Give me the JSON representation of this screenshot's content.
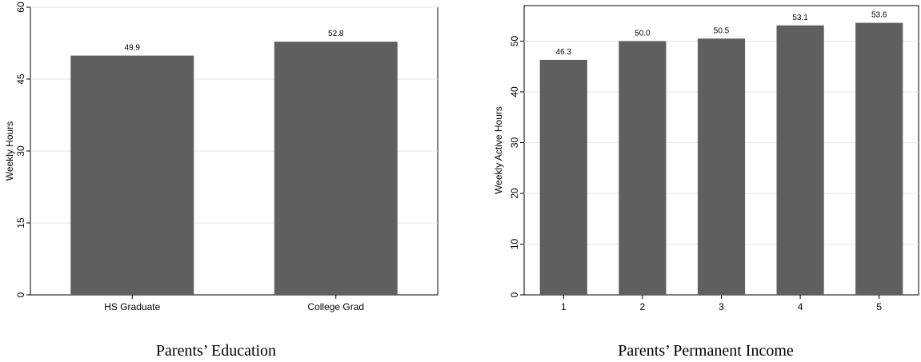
{
  "chart_data": [
    {
      "type": "bar",
      "categories": [
        "HS Graduate",
        "College Grad"
      ],
      "values": [
        49.9,
        52.8
      ],
      "data_labels": [
        "49.9",
        "52.8"
      ],
      "ylabel": "Weekly Hours",
      "ylim": [
        0,
        60
      ],
      "yticks": [
        "0",
        "15",
        "30",
        "45",
        "60"
      ],
      "caption": "Parents’ Education",
      "grid": true,
      "bar_color": "#5f5f5f"
    },
    {
      "type": "bar",
      "categories": [
        "1",
        "2",
        "3",
        "4",
        "5"
      ],
      "values": [
        46.3,
        50.0,
        50.5,
        53.1,
        53.6
      ],
      "data_labels": [
        "46.3",
        "50.0",
        "50.5",
        "53.1",
        "53.6"
      ],
      "ylabel": "Weekly Active Hours",
      "ylim": [
        0,
        57
      ],
      "yticks": [
        "0",
        "10",
        "20",
        "30",
        "40",
        "50"
      ],
      "caption": "Parents’ Permanent Income",
      "grid": true,
      "bar_color": "#5f5f5f"
    }
  ]
}
